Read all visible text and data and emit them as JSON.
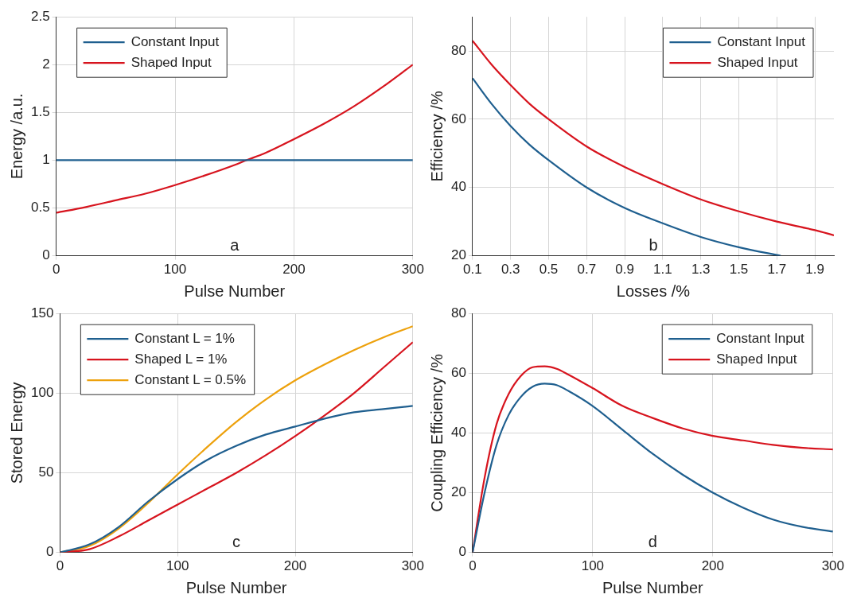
{
  "chart_data": [
    {
      "type": "line",
      "xlabel": "Pulse Number",
      "ylabel": "Energy /a.u.",
      "xlim": [
        0,
        300
      ],
      "xticks": [
        0,
        100,
        200,
        300
      ],
      "ylim": [
        0,
        2.5
      ],
      "yticks": [
        0,
        0.5,
        1,
        1.5,
        2,
        2.5
      ],
      "grid": true,
      "legend": "top left",
      "annotations": [
        "a"
      ],
      "x": [
        0,
        25,
        50,
        75,
        100,
        125,
        150,
        160,
        175,
        200,
        225,
        250,
        275,
        300
      ],
      "series": [
        {
          "name": "Constant Input",
          "color": "#1f5f8f",
          "values": [
            1,
            1,
            1,
            1,
            1,
            1,
            1,
            1,
            1,
            1,
            1,
            1,
            1,
            1
          ]
        },
        {
          "name": "Shaped Input",
          "color": "#d7141e",
          "values": [
            0.45,
            0.51,
            0.58,
            0.65,
            0.74,
            0.84,
            0.95,
            1.0,
            1.07,
            1.22,
            1.38,
            1.56,
            1.77,
            2.0
          ]
        }
      ]
    },
    {
      "type": "line",
      "xlabel": "Losses /%",
      "ylabel": "Efficiency /%",
      "xlim": [
        0.1,
        2.0
      ],
      "xticks": [
        0.1,
        0.3,
        0.5,
        0.7,
        0.9,
        1.1,
        1.3,
        1.5,
        1.7,
        1.9
      ],
      "ylim": [
        20,
        90
      ],
      "yticks": [
        20,
        40,
        60,
        80
      ],
      "grid": true,
      "legend": "top right",
      "annotations": [
        "b"
      ],
      "series": [
        {
          "name": "Constant Input",
          "color": "#1f5f8f",
          "x": [
            0.1,
            0.2,
            0.3,
            0.4,
            0.5,
            0.7,
            0.9,
            1.1,
            1.3,
            1.5,
            1.72
          ],
          "values": [
            72,
            64.5,
            58,
            52.5,
            48,
            40,
            34,
            29.5,
            25.5,
            22.5,
            20
          ]
        },
        {
          "name": "Shaped Input",
          "color": "#d7141e",
          "x": [
            0.1,
            0.2,
            0.3,
            0.4,
            0.5,
            0.7,
            0.9,
            1.1,
            1.3,
            1.5,
            1.7,
            1.9,
            2.0
          ],
          "values": [
            83,
            76,
            70,
            64.5,
            60,
            52,
            46,
            41,
            36.5,
            33,
            30,
            27.5,
            26
          ]
        }
      ]
    },
    {
      "type": "line",
      "xlabel": "Pulse Number",
      "ylabel": "Stored Energy",
      "xlim": [
        0,
        300
      ],
      "xticks": [
        0,
        100,
        200,
        300
      ],
      "ylim": [
        0,
        150
      ],
      "yticks": [
        0,
        50,
        100,
        150
      ],
      "grid": true,
      "legend": "top left",
      "annotations": [
        "c"
      ],
      "x": [
        0,
        25,
        50,
        75,
        100,
        125,
        150,
        175,
        200,
        225,
        250,
        275,
        300
      ],
      "series": [
        {
          "name": "Constant L = 1%",
          "color": "#1f5f8f",
          "values": [
            0,
            5,
            16,
            32,
            46,
            58,
            67,
            74,
            79,
            84,
            88,
            90,
            92
          ]
        },
        {
          "name": "Shaped L = 1%",
          "color": "#d7141e",
          "values": [
            0,
            2,
            10,
            20,
            30,
            40,
            50,
            61,
            73,
            86,
            100,
            116,
            132
          ]
        },
        {
          "name": "Constant L = 0.5%",
          "color": "#eda10c",
          "values": [
            0,
            4,
            15,
            31,
            49,
            66,
            82,
            96,
            108,
            118,
            127,
            135,
            142
          ]
        }
      ]
    },
    {
      "type": "line",
      "xlabel": "Pulse Number",
      "ylabel": "Coupling Efficiency /%",
      "xlim": [
        0,
        300
      ],
      "xticks": [
        0,
        100,
        200,
        300
      ],
      "ylim": [
        0,
        80
      ],
      "yticks": [
        0,
        20,
        40,
        60,
        80
      ],
      "grid": true,
      "legend": "top right",
      "annotations": [
        "d"
      ],
      "x": [
        0,
        10,
        20,
        30,
        40,
        50,
        60,
        70,
        80,
        100,
        125,
        150,
        175,
        200,
        225,
        250,
        275,
        300
      ],
      "series": [
        {
          "name": "Constant Input",
          "color": "#1f5f8f",
          "values": [
            0,
            20,
            36,
            46,
            52,
            55.5,
            56.5,
            56,
            54,
            49,
            41,
            33,
            26,
            20,
            15,
            11,
            8.5,
            7
          ]
        },
        {
          "name": "Shaped Input",
          "color": "#d7141e",
          "values": [
            0,
            25,
            43,
            53,
            59,
            62,
            62.3,
            61.5,
            59.5,
            55,
            49,
            45,
            41.5,
            39,
            37.5,
            36,
            35,
            34.5
          ]
        }
      ]
    }
  ]
}
